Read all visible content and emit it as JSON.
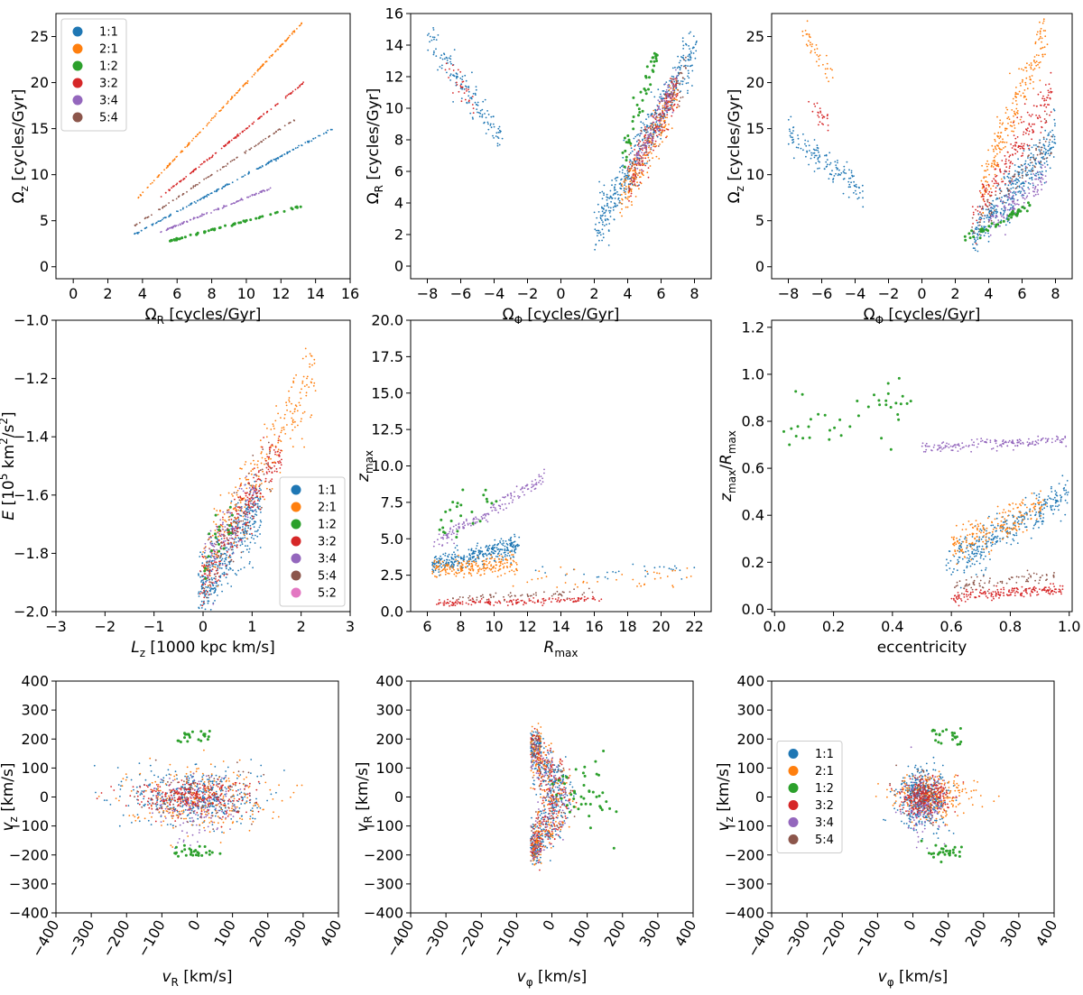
{
  "colors": {
    "1:1": "#1f77b4",
    "2:1": "#ff7f0e",
    "1:2": "#2ca02c",
    "3:2": "#d62728",
    "3:4": "#9467bd",
    "5:4": "#8c564b",
    "5:2": "#e377c2"
  },
  "chart_data": [
    {
      "id": "omega-z-vs-omega-r",
      "type": "scatter",
      "xlabel": "Ω_R [cycles/Gyr]",
      "ylabel": "Ω_z [cycles/Gyr]",
      "xlim": [
        -1,
        16
      ],
      "ylim": [
        -1.3,
        27.5
      ],
      "xticks": [
        0,
        2,
        4,
        6,
        8,
        10,
        12,
        14,
        16
      ],
      "yticks": [
        0,
        5,
        10,
        15,
        20,
        25
      ],
      "legend": [
        "1:1",
        "2:1",
        "1:2",
        "3:2",
        "3:4",
        "5:4"
      ],
      "legend_position": "top-left",
      "series": [
        {
          "name": "1:1",
          "kind": "line",
          "x_range": [
            3.5,
            15.0
          ],
          "slope": 1.0,
          "n": 160,
          "spread": 0.05
        },
        {
          "name": "2:1",
          "kind": "line",
          "x_range": [
            3.7,
            13.3
          ],
          "slope": 2.0,
          "n": 160,
          "spread": 0.05
        },
        {
          "name": "1:2",
          "kind": "line",
          "x_range": [
            5.5,
            13.2
          ],
          "slope": 0.5,
          "n": 60,
          "spread": 0.05
        },
        {
          "name": "3:2",
          "kind": "line",
          "x_range": [
            5.0,
            13.3
          ],
          "slope": 1.5,
          "n": 130,
          "spread": 0.05
        },
        {
          "name": "3:4",
          "kind": "line",
          "x_range": [
            5.0,
            11.4
          ],
          "slope": 0.75,
          "n": 110,
          "spread": 0.05
        },
        {
          "name": "5:4",
          "kind": "line",
          "x_range": [
            3.5,
            12.8
          ],
          "slope": 1.25,
          "n": 90,
          "spread": 0.05
        }
      ]
    },
    {
      "id": "omega-r-vs-omega-phi",
      "type": "scatter",
      "xlabel": "Ω_Φ [cycles/Gyr]",
      "ylabel": "Ω_R [cycles/Gyr]",
      "xlim": [
        -9,
        9
      ],
      "ylim": [
        -0.8,
        16
      ],
      "xticks": [
        -8,
        -6,
        -4,
        -2,
        0,
        2,
        4,
        6,
        8
      ],
      "yticks": [
        0,
        2,
        4,
        6,
        8,
        10,
        12,
        14,
        16
      ],
      "series": [
        {
          "name": "1:1",
          "kind": "band",
          "x_range": [
            -8.0,
            -3.5
          ],
          "y_start": 14.6,
          "y_end": 8.0,
          "spread": 0.5,
          "n": 140
        },
        {
          "name": "1:1",
          "kind": "band",
          "x_range": [
            2.0,
            8.2
          ],
          "y_start": 2.0,
          "y_end": 14.2,
          "spread": 0.8,
          "n": 420
        },
        {
          "name": "3:2",
          "kind": "band",
          "x_range": [
            -7.0,
            -5.2
          ],
          "y_start": 12.8,
          "y_end": 10.2,
          "spread": 0.4,
          "n": 30
        },
        {
          "name": "3:2",
          "kind": "band",
          "x_range": [
            4.0,
            7.0
          ],
          "y_start": 5.2,
          "y_end": 11.5,
          "spread": 0.7,
          "n": 200
        },
        {
          "name": "2:1",
          "kind": "band",
          "x_range": [
            3.5,
            7.0
          ],
          "y_start": 4.0,
          "y_end": 11.0,
          "spread": 0.7,
          "n": 180
        },
        {
          "name": "3:4",
          "kind": "band",
          "x_range": [
            4.5,
            7.0
          ],
          "y_start": 6.5,
          "y_end": 12.0,
          "spread": 0.5,
          "n": 120
        },
        {
          "name": "5:4",
          "kind": "band",
          "x_range": [
            4.0,
            7.5
          ],
          "y_start": 5.5,
          "y_end": 12.5,
          "spread": 0.6,
          "n": 100
        },
        {
          "name": "1:2",
          "kind": "band",
          "x_range": [
            3.7,
            5.8
          ],
          "y_start": 7.0,
          "y_end": 13.8,
          "spread": 0.6,
          "n": 45
        }
      ]
    },
    {
      "id": "omega-z-vs-omega-phi",
      "type": "scatter",
      "xlabel": "Ω_Φ [cycles/Gyr]",
      "ylabel": "Ω_z [cycles/Gyr]",
      "xlim": [
        -9,
        9
      ],
      "ylim": [
        -1.3,
        27.5
      ],
      "xticks": [
        -8,
        -6,
        -4,
        -2,
        0,
        2,
        4,
        6,
        8
      ],
      "yticks": [
        0,
        5,
        10,
        15,
        20,
        25
      ],
      "series": [
        {
          "name": "1:1",
          "kind": "band",
          "x_range": [
            -8.0,
            -3.5
          ],
          "y_start": 14.6,
          "y_end": 8.0,
          "spread": 0.8,
          "n": 140
        },
        {
          "name": "2:1",
          "kind": "band",
          "x_range": [
            -7.2,
            -5.3
          ],
          "y_start": 26.0,
          "y_end": 20.5,
          "spread": 0.8,
          "n": 40
        },
        {
          "name": "3:2",
          "kind": "band",
          "x_range": [
            -6.8,
            -5.6
          ],
          "y_start": 18.0,
          "y_end": 15.5,
          "spread": 0.6,
          "n": 25
        },
        {
          "name": "2:1",
          "kind": "band",
          "x_range": [
            3.5,
            7.6
          ],
          "y_start": 8.0,
          "y_end": 26.0,
          "spread": 1.4,
          "n": 230
        },
        {
          "name": "3:2",
          "kind": "band",
          "x_range": [
            3.0,
            7.8
          ],
          "y_start": 5.0,
          "y_end": 19.0,
          "spread": 1.2,
          "n": 200
        },
        {
          "name": "1:1",
          "kind": "band",
          "x_range": [
            3.0,
            8.0
          ],
          "y_start": 3.0,
          "y_end": 14.0,
          "spread": 1.2,
          "n": 350
        },
        {
          "name": "5:4",
          "kind": "band",
          "x_range": [
            3.0,
            7.8
          ],
          "y_start": 4.0,
          "y_end": 14.0,
          "spread": 1.0,
          "n": 90
        },
        {
          "name": "3:4",
          "kind": "band",
          "x_range": [
            4.0,
            7.5
          ],
          "y_start": 4.5,
          "y_end": 10.0,
          "spread": 0.8,
          "n": 120
        },
        {
          "name": "1:2",
          "kind": "band",
          "x_range": [
            2.5,
            6.5
          ],
          "y_start": 2.8,
          "y_end": 6.5,
          "spread": 0.3,
          "n": 45
        }
      ]
    },
    {
      "id": "energy-vs-lz",
      "type": "scatter",
      "xlabel": "L_z [1000 kpc km/s]",
      "ylabel": "E [10^5 km^2/s^2]",
      "xlim": [
        -3,
        3
      ],
      "ylim": [
        -2.0,
        -1.0
      ],
      "xticks": [
        -3,
        -2,
        -1,
        0,
        1,
        2,
        3
      ],
      "yticks": [
        -2.0,
        -1.8,
        -1.6,
        -1.4,
        -1.2,
        -1.0
      ],
      "legend": [
        "1:1",
        "2:1",
        "1:2",
        "3:2",
        "3:4",
        "5:4",
        "5:2"
      ],
      "legend_position": "center-right",
      "series": [
        {
          "name": "1:1",
          "kind": "band",
          "x_range": [
            -0.1,
            1.2
          ],
          "y_start": -1.95,
          "y_end": -1.62,
          "spread": 0.06,
          "n": 420
        },
        {
          "name": "2:1",
          "kind": "band",
          "x_range": [
            0.0,
            2.3
          ],
          "y_start": -1.85,
          "y_end": -1.18,
          "spread": 0.06,
          "n": 280
        },
        {
          "name": "3:2",
          "kind": "band",
          "x_range": [
            -0.1,
            1.6
          ],
          "y_start": -1.92,
          "y_end": -1.45,
          "spread": 0.05,
          "n": 250
        },
        {
          "name": "3:4",
          "kind": "band",
          "x_range": [
            0.0,
            1.1
          ],
          "y_start": -1.85,
          "y_end": -1.6,
          "spread": 0.05,
          "n": 110
        },
        {
          "name": "5:4",
          "kind": "band",
          "x_range": [
            0.0,
            1.4
          ],
          "y_start": -1.88,
          "y_end": -1.5,
          "spread": 0.05,
          "n": 90
        },
        {
          "name": "1:2",
          "kind": "band",
          "x_range": [
            0.0,
            0.6
          ],
          "y_start": -1.85,
          "y_end": -1.7,
          "spread": 0.05,
          "n": 20
        }
      ]
    },
    {
      "id": "zmax-vs-rmax",
      "type": "scatter",
      "xlabel": "R_max",
      "ylabel": "z_max",
      "xlim": [
        5,
        23
      ],
      "ylim": [
        0,
        20
      ],
      "xticks": [
        6,
        8,
        10,
        12,
        14,
        16,
        18,
        20,
        22
      ],
      "yticks": [
        0.0,
        2.5,
        5.0,
        7.5,
        10.0,
        12.5,
        15.0,
        17.5,
        20.0
      ],
      "series": [
        {
          "name": "1:1",
          "kind": "band",
          "x_range": [
            6.3,
            11.5
          ],
          "y_start": 3.2,
          "y_end": 4.6,
          "spread": 0.35,
          "n": 320
        },
        {
          "name": "1:1",
          "kind": "band",
          "x_range": [
            12.0,
            22.0
          ],
          "y_start": 2.7,
          "y_end": 2.9,
          "spread": 0.3,
          "n": 30
        },
        {
          "name": "2:1",
          "kind": "band",
          "x_range": [
            6.3,
            11.5
          ],
          "y_start": 2.8,
          "y_end": 3.2,
          "spread": 0.35,
          "n": 200
        },
        {
          "name": "2:1",
          "kind": "band",
          "x_range": [
            11.0,
            22.0
          ],
          "y_start": 2.2,
          "y_end": 2.3,
          "spread": 0.35,
          "n": 40
        },
        {
          "name": "3:4",
          "kind": "band",
          "x_range": [
            6.3,
            13.0
          ],
          "y_start": 4.5,
          "y_end": 9.2,
          "spread": 0.25,
          "n": 150
        },
        {
          "name": "3:2",
          "kind": "band",
          "x_range": [
            6.5,
            16.5
          ],
          "y_start": 0.55,
          "y_end": 0.85,
          "spread": 0.1,
          "n": 160
        },
        {
          "name": "5:4",
          "kind": "band",
          "x_range": [
            7.5,
            16.0
          ],
          "y_start": 0.9,
          "y_end": 1.35,
          "spread": 0.12,
          "n": 60
        },
        {
          "name": "1:2",
          "kind": "band",
          "x_range": [
            6.5,
            10.5
          ],
          "y_start": 6.0,
          "y_end": 7.8,
          "spread": 0.6,
          "n": 25
        }
      ]
    },
    {
      "id": "zmax-over-rmax-vs-eccentricity",
      "type": "scatter",
      "xlabel": "eccentricity",
      "ylabel": "z_max/R_max",
      "xlim": [
        -0.01,
        1.01
      ],
      "ylim": [
        -0.01,
        1.23
      ],
      "xticks": [
        0.0,
        0.2,
        0.4,
        0.6,
        0.8,
        1.0
      ],
      "yticks": [
        0.0,
        0.2,
        0.4,
        0.6,
        0.8,
        1.0,
        1.2
      ],
      "series": [
        {
          "name": "1:2",
          "kind": "band",
          "x_range": [
            0.03,
            0.48
          ],
          "y_start": 0.8,
          "y_end": 0.85,
          "spread": 0.07,
          "n": 40
        },
        {
          "name": "3:4",
          "kind": "band",
          "x_range": [
            0.5,
            0.99
          ],
          "y_start": 0.69,
          "y_end": 0.72,
          "spread": 0.012,
          "n": 160
        },
        {
          "name": "1:1",
          "kind": "band",
          "x_range": [
            0.62,
            1.0
          ],
          "y_start": 0.22,
          "y_end": 0.5,
          "spread": 0.035,
          "n": 300
        },
        {
          "name": "2:1",
          "kind": "band",
          "x_range": [
            0.6,
            0.92
          ],
          "y_start": 0.27,
          "y_end": 0.44,
          "spread": 0.035,
          "n": 200
        },
        {
          "name": "1:1",
          "kind": "band",
          "x_range": [
            0.58,
            0.72
          ],
          "y_start": 0.2,
          "y_end": 0.2,
          "spread": 0.04,
          "n": 40
        },
        {
          "name": "5:4",
          "kind": "band",
          "x_range": [
            0.6,
            0.95
          ],
          "y_start": 0.1,
          "y_end": 0.14,
          "spread": 0.015,
          "n": 80
        },
        {
          "name": "3:2",
          "kind": "band",
          "x_range": [
            0.6,
            0.98
          ],
          "y_start": 0.05,
          "y_end": 0.09,
          "spread": 0.012,
          "n": 180
        }
      ]
    },
    {
      "id": "vz-vs-vr",
      "type": "scatter",
      "xlabel": "v_R [km/s]",
      "ylabel": "v_z [km/s]",
      "xlim": [
        -400,
        400
      ],
      "ylim": [
        -400,
        400
      ],
      "xticks": [
        -400,
        -300,
        -200,
        -100,
        0,
        100,
        200,
        300,
        400
      ],
      "yticks": [
        -400,
        -300,
        -200,
        -100,
        0,
        100,
        200,
        300,
        400
      ],
      "series": [
        {
          "name": "1:1",
          "kind": "cloud",
          "center": [
            0,
            0
          ],
          "sd": [
            90,
            50
          ],
          "n": 420
        },
        {
          "name": "2:1",
          "kind": "cloud",
          "center": [
            0,
            0
          ],
          "sd": [
            100,
            55
          ],
          "n": 260
        },
        {
          "name": "3:2",
          "kind": "cloud",
          "center": [
            -20,
            0
          ],
          "sd": [
            90,
            30
          ],
          "n": 280
        },
        {
          "name": "3:4",
          "kind": "cloud",
          "center": [
            0,
            -40
          ],
          "sd": [
            60,
            60
          ],
          "n": 130
        },
        {
          "name": "5:4",
          "kind": "cloud",
          "center": [
            0,
            0
          ],
          "sd": [
            80,
            50
          ],
          "n": 80
        },
        {
          "name": "1:2",
          "kind": "cloud",
          "center": [
            0,
            205
          ],
          "sd": [
            30,
            15
          ],
          "n": 22
        },
        {
          "name": "1:2",
          "kind": "cloud",
          "center": [
            0,
            -190
          ],
          "sd": [
            40,
            12
          ],
          "n": 28
        }
      ]
    },
    {
      "id": "vr-vs-vphi",
      "type": "scatter",
      "xlabel": "v_φ [km/s]",
      "ylabel": "v_R [km/s]",
      "xlim": [
        -400,
        400
      ],
      "ylim": [
        -400,
        400
      ],
      "xticks": [
        -400,
        -300,
        -200,
        -100,
        0,
        100,
        200,
        300,
        400
      ],
      "yticks": [
        -400,
        -300,
        -200,
        -100,
        0,
        100,
        200,
        300,
        400
      ],
      "series": [
        {
          "name": "1:1",
          "kind": "arc",
          "radius": 240,
          "spread": 22,
          "n": 420
        },
        {
          "name": "3:2",
          "kind": "arc",
          "radius": 240,
          "spread": 22,
          "n": 280
        },
        {
          "name": "2:1",
          "kind": "arc",
          "radius": 245,
          "spread": 25,
          "n": 220
        },
        {
          "name": "3:4",
          "kind": "arc",
          "radius": 230,
          "spread": 20,
          "n": 120
        },
        {
          "name": "5:4",
          "kind": "arc",
          "radius": 240,
          "spread": 22,
          "n": 80
        },
        {
          "name": "1:2",
          "kind": "cloud",
          "center": [
            100,
            10
          ],
          "sd": [
            40,
            60
          ],
          "n": 45
        }
      ]
    },
    {
      "id": "vz-vs-vphi",
      "type": "scatter",
      "xlabel": "v_φ [km/s]",
      "ylabel": "v_z [km/s]",
      "xlim": [
        -400,
        400
      ],
      "ylim": [
        -400,
        400
      ],
      "xticks": [
        -400,
        -300,
        -200,
        -100,
        0,
        100,
        200,
        300,
        400
      ],
      "yticks": [
        -400,
        -300,
        -200,
        -100,
        0,
        100,
        200,
        300,
        400
      ],
      "legend": [
        "1:1",
        "2:1",
        "1:2",
        "3:2",
        "3:4",
        "5:4"
      ],
      "legend_position": "center-left",
      "series": [
        {
          "name": "1:1",
          "kind": "cloud",
          "center": [
            30,
            0
          ],
          "sd": [
            35,
            50
          ],
          "n": 420
        },
        {
          "name": "2:1",
          "kind": "cloud",
          "center": [
            60,
            0
          ],
          "sd": [
            60,
            40
          ],
          "n": 240
        },
        {
          "name": "3:2",
          "kind": "cloud",
          "center": [
            30,
            0
          ],
          "sd": [
            35,
            30
          ],
          "n": 260
        },
        {
          "name": "3:4",
          "kind": "cloud",
          "center": [
            30,
            -40
          ],
          "sd": [
            30,
            55
          ],
          "n": 130
        },
        {
          "name": "5:4",
          "kind": "cloud",
          "center": [
            30,
            0
          ],
          "sd": [
            30,
            45
          ],
          "n": 80
        },
        {
          "name": "1:2",
          "kind": "cloud",
          "center": [
            100,
            210
          ],
          "sd": [
            30,
            15
          ],
          "n": 22
        },
        {
          "name": "1:2",
          "kind": "cloud",
          "center": [
            100,
            -190
          ],
          "sd": [
            35,
            12
          ],
          "n": 28
        }
      ]
    }
  ]
}
